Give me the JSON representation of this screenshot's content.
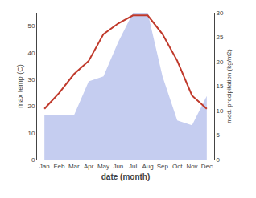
{
  "chart_data": {
    "type": "line",
    "xlabel": "date (month)",
    "ylabel": "max temp (C)",
    "y2label": "med. precipitation (kg/m2)",
    "categories": [
      "Jan",
      "Feb",
      "Mar",
      "Apr",
      "May",
      "Jun",
      "Jul",
      "Aug",
      "Sep",
      "Oct",
      "Nov",
      "Dec"
    ],
    "series": [
      {
        "type": "area",
        "color": "#c5cdf0",
        "axis": "y2",
        "values": [
          9,
          9,
          9,
          16,
          17,
          24,
          30,
          30,
          17,
          8,
          7,
          13
        ]
      },
      {
        "type": "line",
        "color": "#c0392b",
        "values": [
          19,
          25,
          32,
          37,
          47,
          51,
          54,
          54,
          47,
          37,
          24,
          19
        ]
      }
    ],
    "ylim": [
      0,
      55
    ],
    "yticks": [
      0,
      10,
      20,
      30,
      40,
      50
    ],
    "y2lim": [
      0,
      30
    ],
    "y2ticks": [
      0,
      5,
      10,
      15,
      20,
      25,
      30
    ],
    "grid": false
  }
}
